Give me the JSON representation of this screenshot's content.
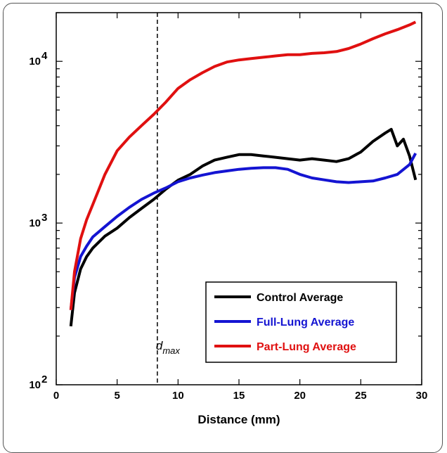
{
  "chart_data": {
    "type": "line",
    "title": "",
    "xlabel": "Distance (mm)",
    "ylabel": "",
    "xlim": [
      0,
      30
    ],
    "ylim": [
      100,
      20000
    ],
    "yscale": "log",
    "x_ticks": [
      0,
      5,
      10,
      15,
      20,
      25,
      30
    ],
    "y_ticks": [
      {
        "value": 100,
        "base": "10",
        "exp": "2"
      },
      {
        "value": 1000,
        "base": "10",
        "exp": "3"
      },
      {
        "value": 10000,
        "base": "10",
        "exp": "4"
      }
    ],
    "legend_position": "lower-right",
    "annotation": {
      "text": "d",
      "subscript": "max",
      "x": 8.3
    },
    "series": [
      {
        "name": "Control Average",
        "color": "#000000",
        "x": [
          1.2,
          1.5,
          2,
          2.5,
          3,
          4,
          5,
          6,
          7,
          8,
          9,
          10,
          11,
          12,
          13,
          14,
          15,
          16,
          17,
          18,
          19,
          20,
          21,
          22,
          23,
          24,
          25,
          26,
          27,
          27.5,
          28,
          28.5,
          29,
          29.5
        ],
        "y": [
          230,
          370,
          520,
          620,
          700,
          830,
          930,
          1080,
          1230,
          1400,
          1620,
          1840,
          2000,
          2250,
          2450,
          2550,
          2650,
          2650,
          2600,
          2550,
          2500,
          2450,
          2500,
          2450,
          2400,
          2500,
          2750,
          3200,
          3600,
          3800,
          3000,
          3300,
          2600,
          1850
        ]
      },
      {
        "name": "Full-Lung Average",
        "color": "#1414d2",
        "x": [
          1.2,
          1.5,
          2,
          2.5,
          3,
          4,
          5,
          6,
          7,
          8,
          9,
          10,
          11,
          12,
          13,
          14,
          15,
          16,
          17,
          18,
          19,
          20,
          21,
          22,
          23,
          24,
          25,
          26,
          27,
          28,
          29,
          29.5
        ],
        "y": [
          290,
          460,
          620,
          720,
          820,
          950,
          1100,
          1250,
          1400,
          1530,
          1650,
          1800,
          1900,
          1980,
          2050,
          2100,
          2150,
          2180,
          2200,
          2200,
          2150,
          2000,
          1900,
          1850,
          1800,
          1780,
          1800,
          1820,
          1900,
          2000,
          2300,
          2700
        ]
      },
      {
        "name": "Part-Lung Average",
        "color": "#e01010",
        "x": [
          1.2,
          1.5,
          2,
          2.5,
          3,
          4,
          5,
          6,
          7,
          8,
          9,
          10,
          11,
          12,
          13,
          14,
          15,
          16,
          17,
          18,
          19,
          20,
          21,
          22,
          23,
          24,
          25,
          26,
          27,
          28,
          29,
          29.5
        ],
        "y": [
          290,
          500,
          800,
          1050,
          1300,
          2000,
          2800,
          3400,
          4000,
          4700,
          5600,
          6800,
          7700,
          8500,
          9300,
          9900,
          10200,
          10400,
          10600,
          10800,
          11000,
          11000,
          11200,
          11300,
          11500,
          12000,
          12800,
          13800,
          14800,
          15700,
          16800,
          17500
        ]
      }
    ]
  }
}
